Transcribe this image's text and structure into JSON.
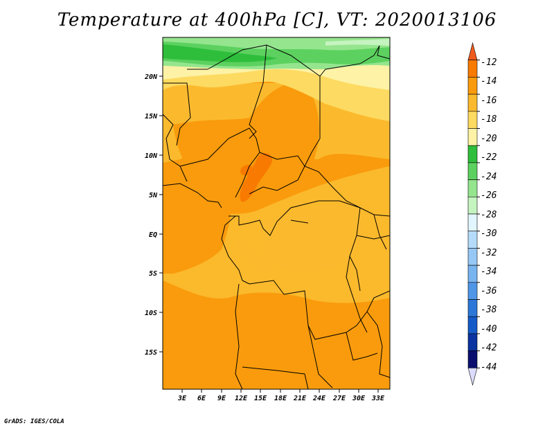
{
  "title": "Temperature at 400hPa [C], VT: 2020013106",
  "credit": "GrADS: IGES/COLA",
  "map": {
    "lat_labels": [
      "20N",
      "15N",
      "10N",
      "5N",
      "EQ",
      "5S",
      "10S",
      "15S"
    ],
    "lon_labels": [
      "3E",
      "6E",
      "9E",
      "12E",
      "15E",
      "18E",
      "21E",
      "24E",
      "27E",
      "30E",
      "33E"
    ]
  },
  "colorbar": {
    "levels": [
      "-12",
      "-14",
      "-16",
      "-18",
      "-20",
      "-22",
      "-24",
      "-26",
      "-28",
      "-30",
      "-32",
      "-34",
      "-36",
      "-38",
      "-40",
      "-42",
      "-44"
    ],
    "colors": [
      "#f05a1e",
      "#f87a00",
      "#f99b0c",
      "#fbba2e",
      "#fdda61",
      "#fdf2a5",
      "#2ebe3c",
      "#5cd15f",
      "#95e58e",
      "#c5f4c0",
      "#e1f6ff",
      "#b4dcfa",
      "#96c8f5",
      "#78b4f0",
      "#5096e6",
      "#2c78d8",
      "#145ac8",
      "#0a32a0",
      "#0a0f6e",
      "#dcdcff"
    ]
  }
}
